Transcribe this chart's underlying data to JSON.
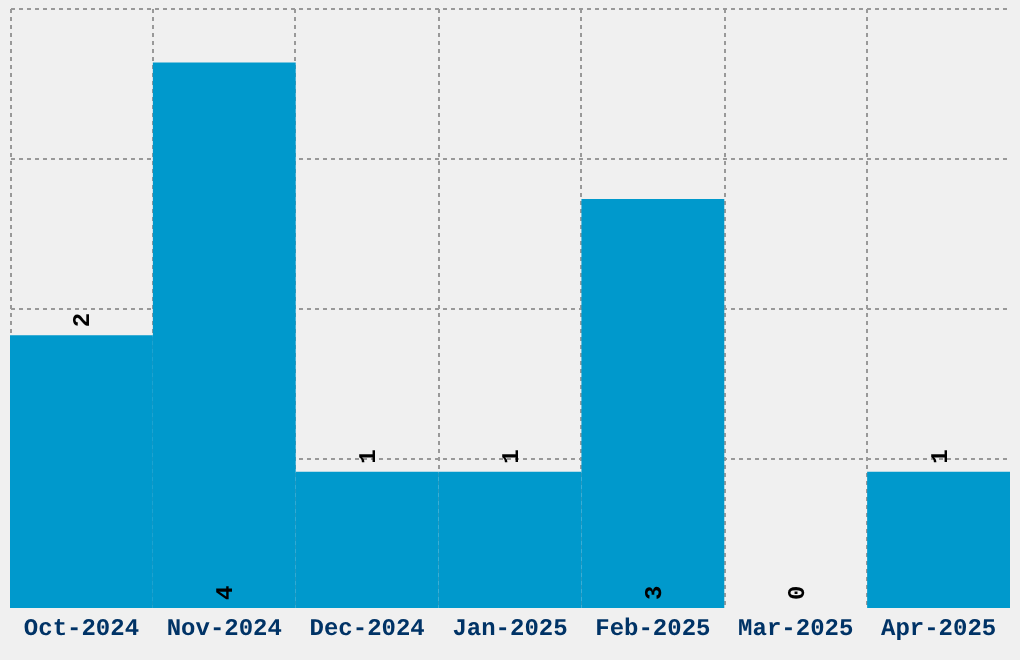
{
  "chart_data": {
    "type": "bar",
    "categories": [
      "Oct-2024",
      "Nov-2024",
      "Dec-2024",
      "Jan-2025",
      "Feb-2025",
      "Mar-2025",
      "Apr-2025"
    ],
    "values": [
      2,
      4,
      1,
      1,
      3,
      0,
      1
    ],
    "color": "#0099cc",
    "ylim": [
      0,
      4.4
    ],
    "yticks": [
      {
        "value": 1.1,
        "label": null
      },
      {
        "value": 2.2,
        "label": null
      },
      {
        "value": 3.3,
        "label": null
      },
      {
        "value": 4.4,
        "label": null
      }
    ],
    "grid": true,
    "data_labels": true
  }
}
